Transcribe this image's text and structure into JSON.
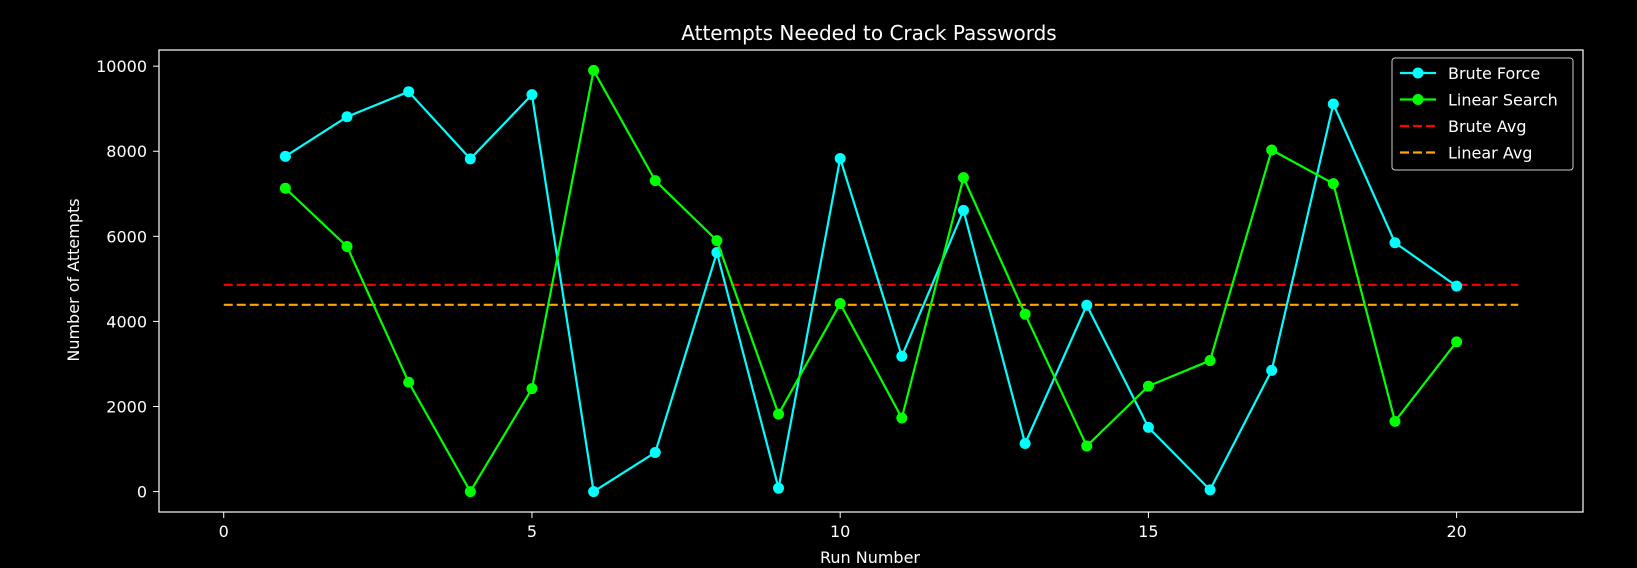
{
  "chart_data": {
    "type": "line",
    "title": "Attempts Needed to Crack Passwords",
    "xlabel": "Run Number",
    "ylabel": "Number of Attempts",
    "xlim": [
      -1.05,
      22.05
    ],
    "ylim": [
      -480,
      10380
    ],
    "xticks": [
      0,
      5,
      10,
      15,
      20
    ],
    "yticks": [
      0,
      2000,
      4000,
      6000,
      8000,
      10000
    ],
    "grid": false,
    "legend_position": "top-right",
    "background": "#000000",
    "x": [
      1,
      2,
      3,
      4,
      5,
      6,
      7,
      8,
      9,
      10,
      11,
      12,
      13,
      14,
      15,
      16,
      17,
      18,
      19,
      20
    ],
    "series": [
      {
        "name": "Brute Force",
        "color": "#00ffff",
        "style": "solid",
        "marker": "circle",
        "values": [
          7880,
          8810,
          9400,
          7820,
          9330,
          0,
          920,
          5620,
          80,
          7830,
          3180,
          6610,
          1130,
          4380,
          1510,
          40,
          2850,
          9110,
          5850,
          4830
        ]
      },
      {
        "name": "Linear Search",
        "color": "#00ff00",
        "style": "solid",
        "marker": "circle",
        "values": [
          7130,
          5760,
          2570,
          0,
          2420,
          9900,
          7310,
          5900,
          1820,
          4420,
          1730,
          7380,
          4170,
          1070,
          2480,
          3080,
          8030,
          7240,
          1650,
          3520
        ]
      }
    ],
    "reference_lines": [
      {
        "name": "Brute Avg",
        "color": "#ff0000",
        "style": "dashed",
        "y": 4860,
        "x_range": [
          0,
          21
        ]
      },
      {
        "name": "Linear Avg",
        "color": "#ffa500",
        "style": "dashed",
        "y": 4390,
        "x_range": [
          0,
          21
        ]
      }
    ]
  }
}
